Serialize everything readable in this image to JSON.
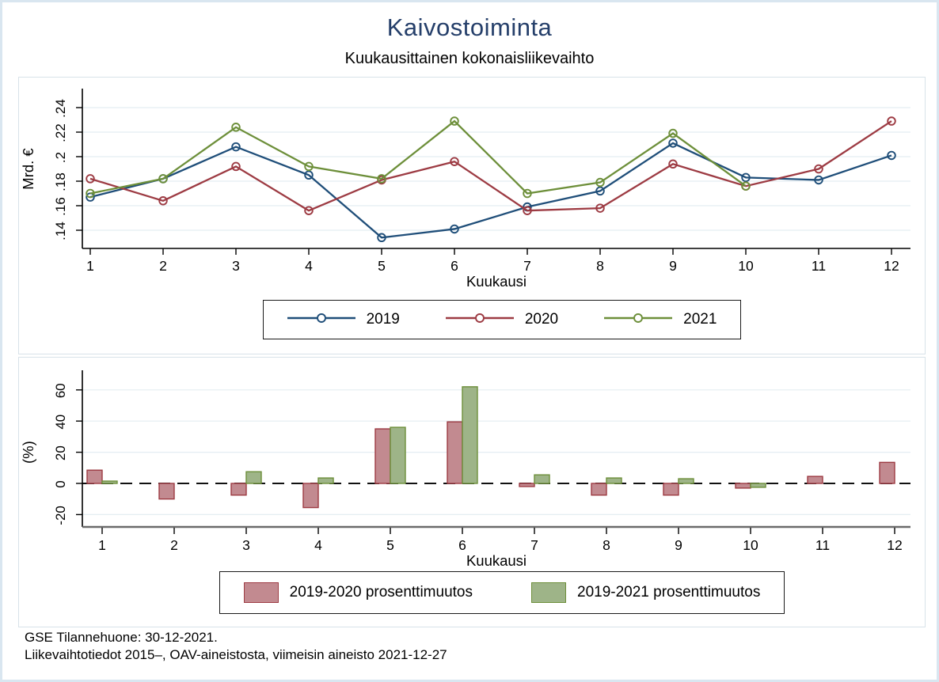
{
  "header": {
    "title": "Kaivostoiminta",
    "subtitle": "Kuukausittainen kokonaisliikevaihto",
    "title_color": "#253f6a"
  },
  "footer": {
    "line1": "GSE Tilannehuone: 30-12-2021.",
    "line2": "Liikevaihtotiedot 2015–, OAV-aineistosta, viimeisin aineisto 2021-12-27"
  },
  "colors": {
    "frame_border": "#d9e6f0",
    "panel_border": "#d8e2e9",
    "gridline": "#e4edf2",
    "series_2019": "#1f4e79",
    "series_2020": "#9d3b43",
    "series_2021": "#6d8f3a",
    "bar_2020_fill": "#c28a90",
    "bar_2021_fill": "#9eb488"
  },
  "chart_data": [
    {
      "type": "line",
      "title": "Kuukausittainen kokonaisliikevaihto",
      "xlabel": "Kuukausi",
      "ylabel": "Mrd. €",
      "x": [
        1,
        2,
        3,
        4,
        5,
        6,
        7,
        8,
        9,
        10,
        11,
        12
      ],
      "yticks": [
        {
          "label": ".14",
          "value": 0.14
        },
        {
          "label": ".16",
          "value": 0.16
        },
        {
          "label": ".18",
          "value": 0.18
        },
        {
          "label": ".2",
          "value": 0.2
        },
        {
          "label": ".22",
          "value": 0.22
        },
        {
          "label": ".24",
          "value": 0.24
        }
      ],
      "ylim": [
        0.125,
        0.255
      ],
      "grid": true,
      "legend_position": "bottom-center",
      "series": [
        {
          "name": "2019",
          "color": "#1f4e79",
          "values": [
            0.167,
            0.182,
            0.208,
            0.185,
            0.134,
            0.141,
            0.159,
            0.172,
            0.211,
            0.183,
            0.181,
            0.201
          ]
        },
        {
          "name": "2020",
          "color": "#9d3b43",
          "values": [
            0.182,
            0.164,
            0.192,
            0.156,
            0.181,
            0.196,
            0.156,
            0.158,
            0.194,
            0.176,
            0.19,
            0.229
          ]
        },
        {
          "name": "2021",
          "color": "#6d8f3a",
          "values": [
            0.17,
            0.182,
            0.224,
            0.192,
            0.182,
            0.229,
            0.17,
            0.179,
            0.219,
            0.176,
            null,
            null
          ]
        }
      ]
    },
    {
      "type": "bar",
      "title": "",
      "xlabel": "Kuukausi",
      "ylabel": "(%)",
      "categories": [
        1,
        2,
        3,
        4,
        5,
        6,
        7,
        8,
        9,
        10,
        11,
        12
      ],
      "yticks": [
        {
          "label": "-20",
          "value": -20
        },
        {
          "label": "0",
          "value": 0
        },
        {
          "label": "20",
          "value": 20
        },
        {
          "label": "40",
          "value": 40
        },
        {
          "label": "60",
          "value": 60
        }
      ],
      "ylim": [
        -28,
        72
      ],
      "grid": true,
      "zero_line": "dashed",
      "legend_position": "bottom-center",
      "series": [
        {
          "name": "2019-2020 prosenttimuutos",
          "fill": "#c28a90",
          "stroke": "#9d3b43",
          "values": [
            8.5,
            -10,
            -7.5,
            -15.5,
            35,
            39.5,
            -2,
            -7.5,
            -7.5,
            -3,
            4.5,
            13.5
          ]
        },
        {
          "name": "2019-2021 prosenttimuutos",
          "fill": "#9eb488",
          "stroke": "#6d8f3a",
          "values": [
            1.5,
            0,
            7.5,
            3.5,
            36,
            62,
            5.5,
            3.5,
            3,
            -2.5,
            null,
            null
          ]
        }
      ]
    }
  ]
}
